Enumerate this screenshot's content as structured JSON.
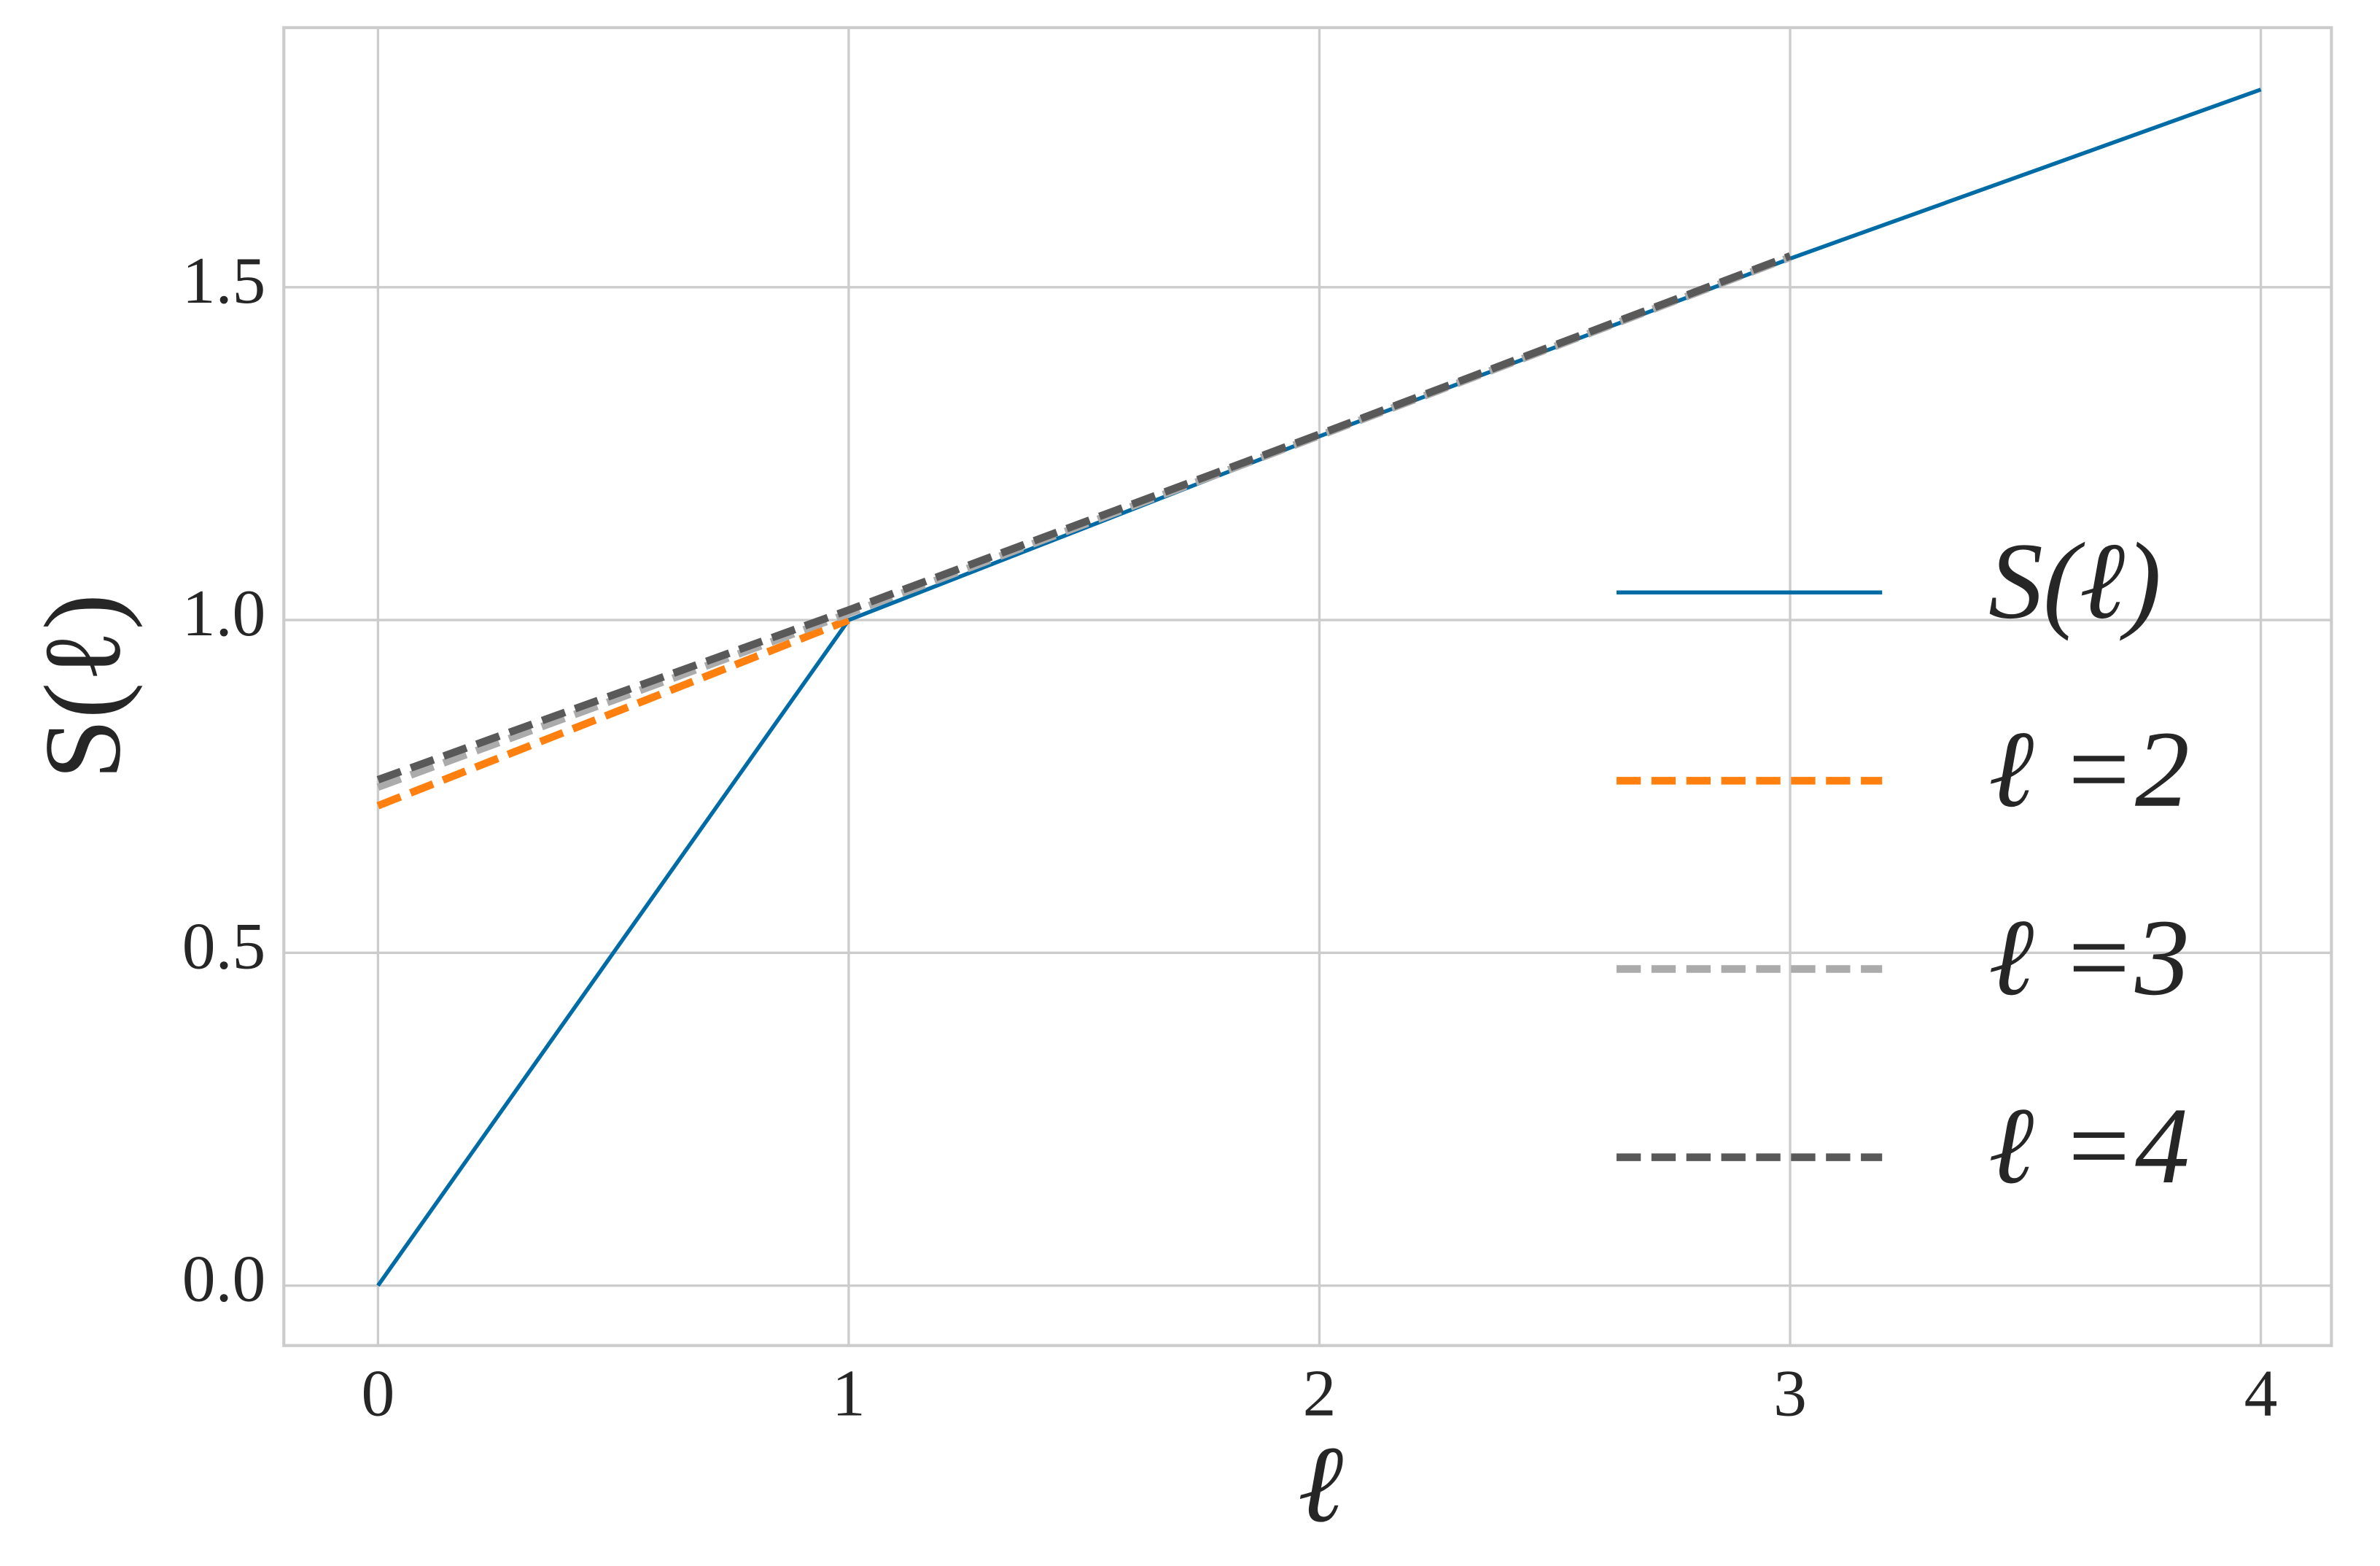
{
  "chart_data": {
    "type": "line",
    "xlabel": "ℓ",
    "ylabel": "S(ℓ)",
    "xlim": [
      -0.2,
      4.15
    ],
    "ylim": [
      -0.09,
      1.89
    ],
    "xticks": [
      0,
      1,
      2,
      3,
      4
    ],
    "yticks": [
      {
        "value": 0,
        "label": "0.0"
      },
      0.5,
      {
        "value": 1,
        "label": "1.0"
      },
      1.5
    ],
    "grid": true,
    "legend": "lower right",
    "series": [
      {
        "name": "S(ℓ)",
        "color": "#006ba4",
        "style": "solid",
        "x": [
          0,
          1,
          2,
          3,
          4
        ],
        "values": [
          0,
          1.0,
          1.276,
          1.543,
          1.797
        ]
      },
      {
        "name": "ℓ =2",
        "color": "#ff800e",
        "style": "dashed",
        "x": [
          0,
          1
        ],
        "values": [
          0.721,
          1.0
        ]
      },
      {
        "name": "ℓ =3",
        "color": "#ababab",
        "style": "dashed",
        "x": [
          0,
          1,
          2,
          3
        ],
        "values": [
          0.749,
          1.01,
          1.277,
          1.545
        ]
      },
      {
        "name": "ℓ =4",
        "color": "#595959",
        "style": "dashed",
        "x": [
          0,
          1,
          2,
          3
        ],
        "values": [
          0.76,
          1.015,
          1.279,
          1.547
        ]
      }
    ]
  }
}
